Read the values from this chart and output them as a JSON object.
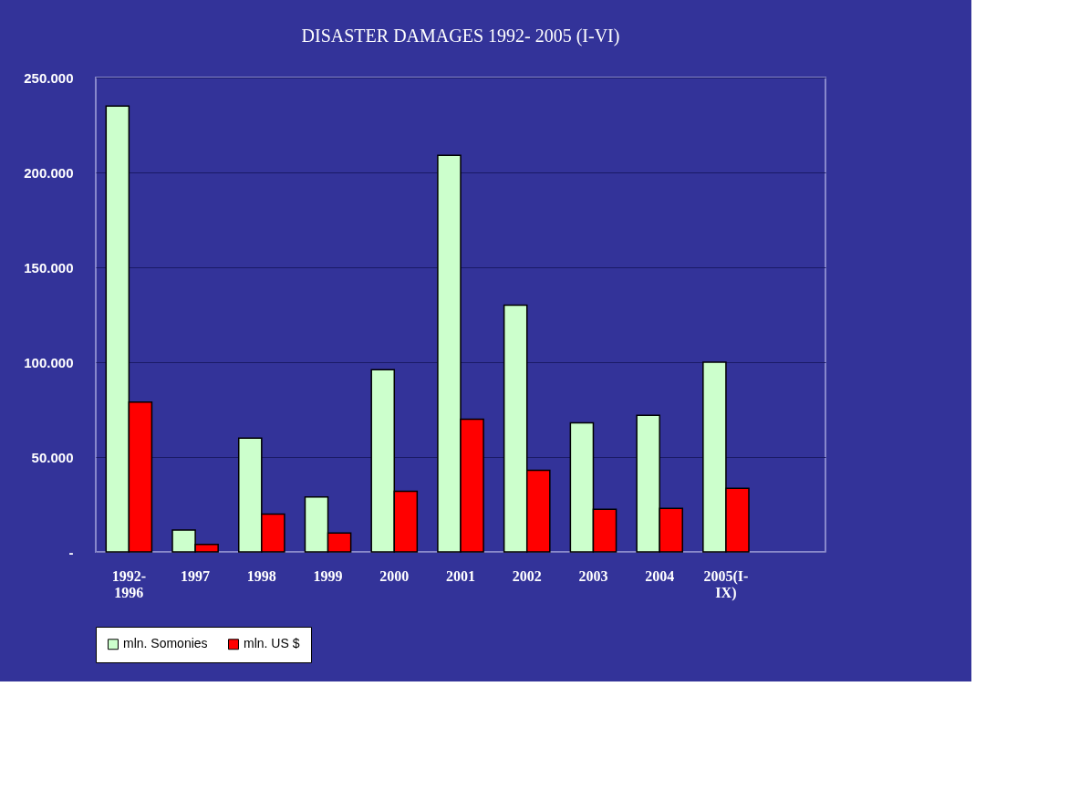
{
  "chart_data": {
    "type": "bar",
    "title": "DISASTER DAMAGES 1992- 2005 (I-VI)",
    "categories": [
      "1992-\n1996",
      "1997",
      "1998",
      "1999",
      "2000",
      "2001",
      "2002",
      "2003",
      "2004",
      "2005(I-\nIX)",
      null
    ],
    "series": [
      {
        "name": "mln. Somonies",
        "color": "#ccffcc",
        "values": [
          235000,
          11500,
          60000,
          29000,
          96000,
          209000,
          130000,
          68000,
          72000,
          100000,
          null
        ]
      },
      {
        "name": "mln. US $",
        "color": "#ff0000",
        "values": [
          79000,
          4000,
          20000,
          10000,
          32000,
          70000,
          43000,
          22500,
          23000,
          33500,
          null
        ]
      }
    ],
    "ylim": [
      0,
      250000
    ],
    "yticks": [
      {
        "value": 0,
        "label": "-"
      },
      {
        "value": 50000,
        "label": "50.000"
      },
      {
        "value": 100000,
        "label": "100.000"
      },
      {
        "value": 150000,
        "label": "150.000"
      },
      {
        "value": 200000,
        "label": "200.000"
      },
      {
        "value": 250000,
        "label": "250.000"
      }
    ],
    "grid": "y",
    "legend": "bottom"
  }
}
